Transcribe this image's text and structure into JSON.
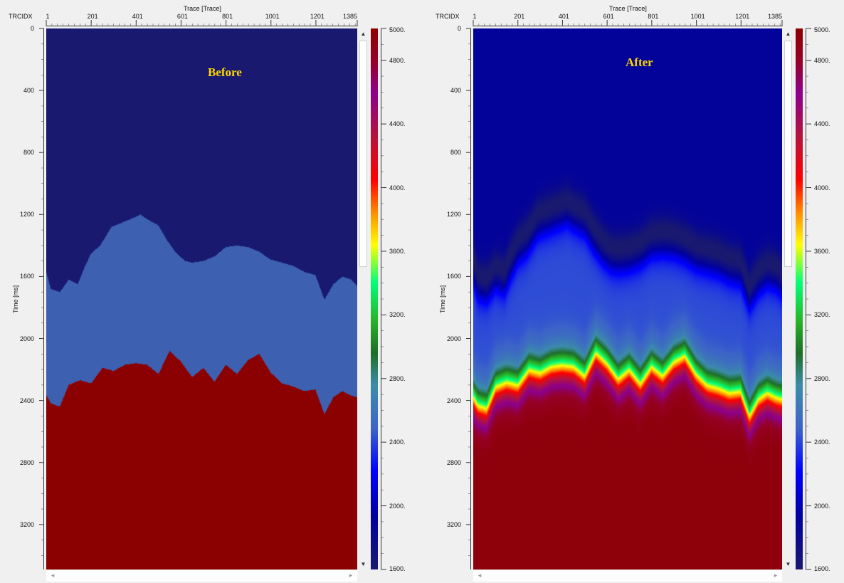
{
  "panels": [
    {
      "title": "Before",
      "x_axis_label": "Trace [Trace]",
      "x_header": "TRCIDX",
      "y_axis_label": "Time [ms]",
      "x_ticks": [
        "1",
        "201",
        "401",
        "601",
        "801",
        "1001",
        "1201",
        "1385"
      ],
      "y_ticks": [
        "0",
        "400",
        "800",
        "1200",
        "1600",
        "2000",
        "2400",
        "2800",
        "3200"
      ],
      "colorbar_ticks": [
        "5000.",
        "4800.",
        "4400.",
        "4000.",
        "3600.",
        "3200.",
        "2800.",
        "2400.",
        "2000.",
        "1600."
      ],
      "mode": "sharp"
    },
    {
      "title": "After",
      "x_axis_label": "Trace [Trace]",
      "x_header": "TRCIDX",
      "y_axis_label": "Time [ms]",
      "x_ticks": [
        "1",
        "201",
        "401",
        "601",
        "801",
        "1001",
        "1201",
        "1385"
      ],
      "y_ticks": [
        "0",
        "400",
        "800",
        "1200",
        "1600",
        "2000",
        "2400",
        "2800",
        "3200"
      ],
      "colorbar_ticks": [
        "5000.",
        "4800.",
        "4400.",
        "4000.",
        "3600.",
        "3200.",
        "2800.",
        "2400.",
        "2000.",
        "1600."
      ],
      "mode": "smooth"
    }
  ],
  "data_model": {
    "trace_range": [
      1,
      1385
    ],
    "time_range_ms": [
      0,
      3490
    ],
    "velocity_range": [
      1600,
      5000
    ],
    "layer_velocities": [
      1900,
      2420,
      4950
    ],
    "upper_boundary_traces": [
      1,
      20,
      60,
      100,
      140,
      170,
      200,
      240,
      290,
      340,
      390,
      420,
      450,
      500,
      540,
      580,
      620,
      650,
      700,
      750,
      800,
      850,
      900,
      950,
      1000,
      1050,
      1100,
      1150,
      1200,
      1240,
      1280,
      1320,
      1360,
      1385
    ],
    "upper_boundary_ms": [
      1580,
      1680,
      1700,
      1620,
      1650,
      1540,
      1450,
      1400,
      1280,
      1250,
      1220,
      1200,
      1230,
      1270,
      1370,
      1450,
      1500,
      1510,
      1500,
      1470,
      1410,
      1400,
      1410,
      1440,
      1490,
      1510,
      1530,
      1570,
      1590,
      1750,
      1650,
      1600,
      1620,
      1660
    ],
    "lower_boundary_traces": [
      1,
      20,
      60,
      100,
      150,
      200,
      250,
      300,
      350,
      400,
      450,
      500,
      550,
      600,
      650,
      700,
      750,
      800,
      850,
      900,
      950,
      1000,
      1050,
      1100,
      1150,
      1200,
      1240,
      1280,
      1320,
      1360,
      1385
    ],
    "lower_boundary_ms": [
      2370,
      2420,
      2440,
      2300,
      2270,
      2290,
      2190,
      2210,
      2170,
      2160,
      2170,
      2230,
      2080,
      2150,
      2250,
      2190,
      2280,
      2170,
      2230,
      2140,
      2100,
      2220,
      2290,
      2310,
      2340,
      2330,
      2490,
      2380,
      2340,
      2370,
      2380
    ]
  },
  "colors": {
    "background": "#f0f0f0",
    "title": "#ffd700"
  }
}
